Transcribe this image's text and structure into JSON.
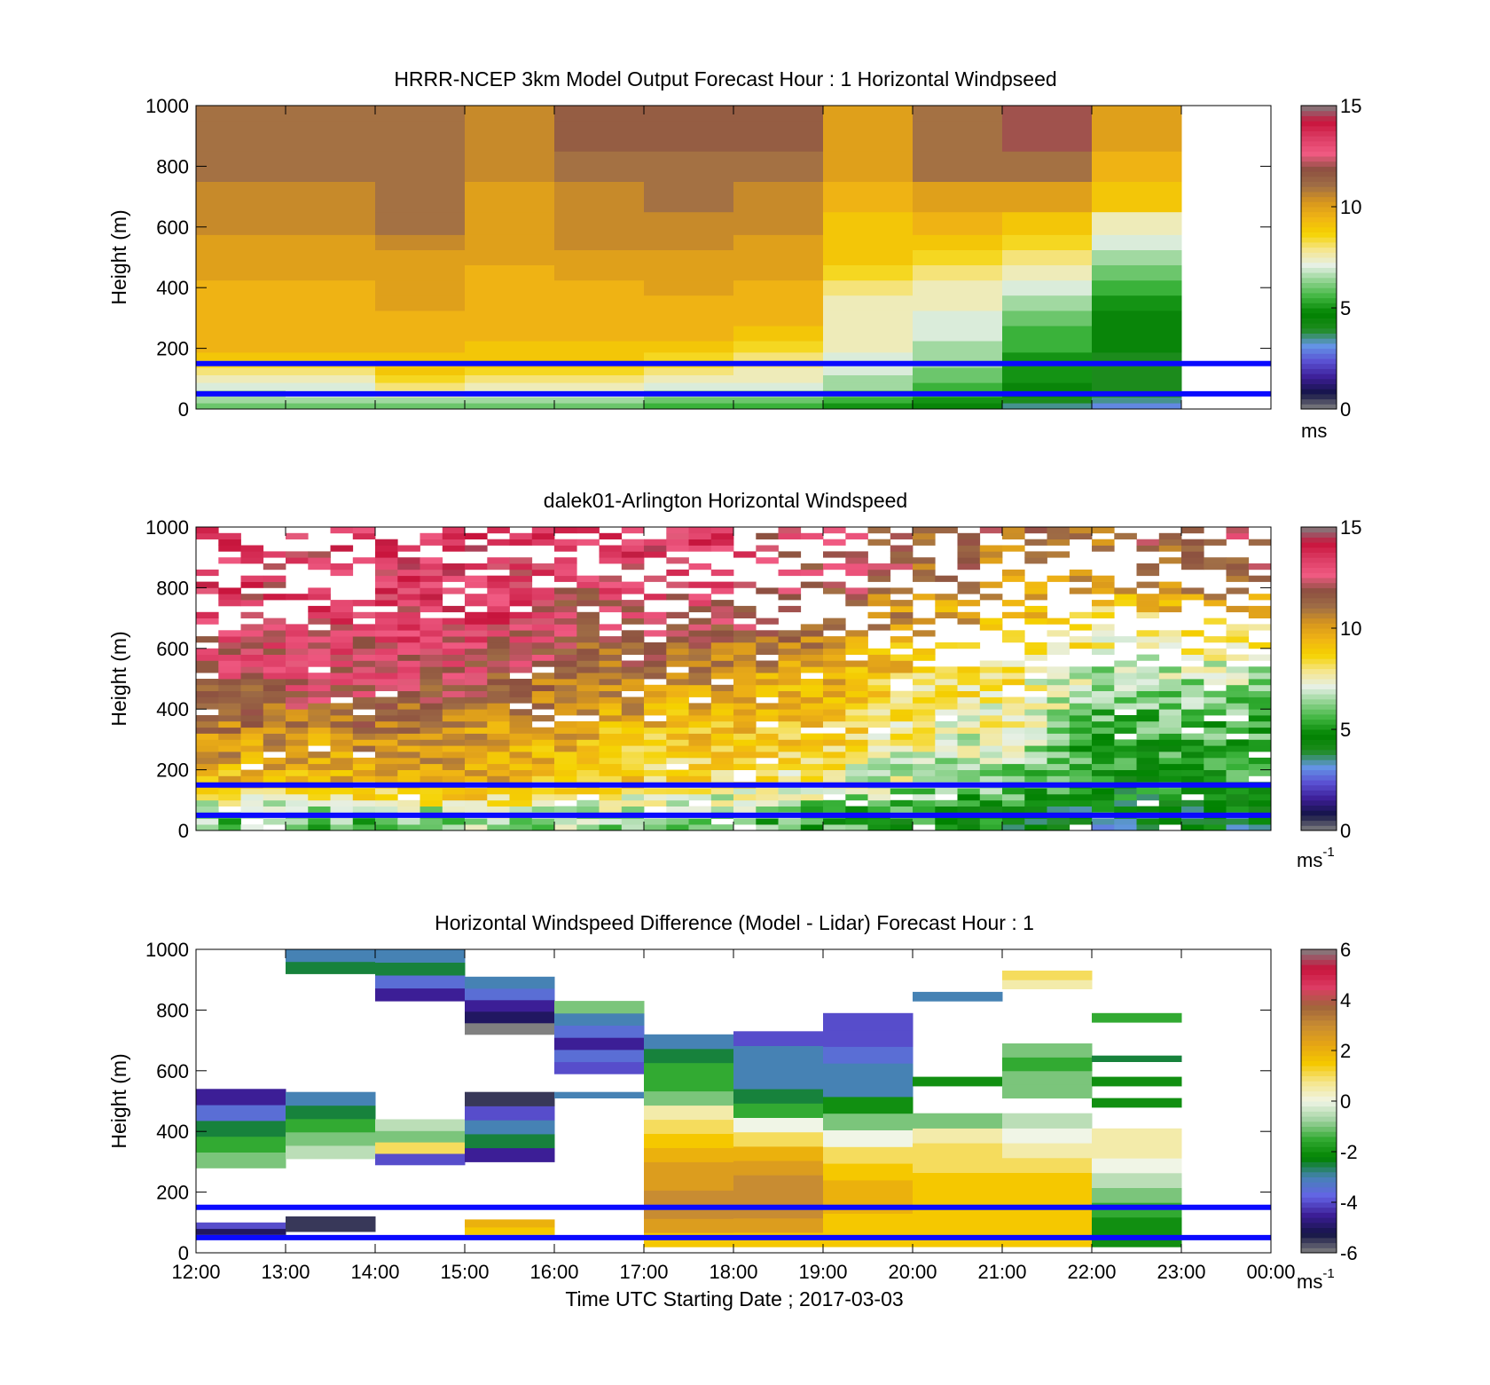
{
  "colors": {
    "windspeed_colormap": [
      "#808080",
      "#141446",
      "#3c1e96",
      "#5a50d2",
      "#6496e6",
      "#1e8c1e",
      "#008200",
      "#3cb43c",
      "#8cd28c",
      "#e6f0e6",
      "#f5e68c",
      "#f5d200",
      "#f0b414",
      "#d7961e",
      "#a06e46",
      "#8c5040",
      "#f05a82",
      "#dc3c64",
      "#c8143c",
      "#808080"
    ],
    "difference_colormap": [
      "#808080",
      "#141446",
      "#3c1e96",
      "#6464e6",
      "#4682b4",
      "#008200",
      "#32aa32",
      "#a0d2a0",
      "#f0f5e6",
      "#f5e68c",
      "#f5c800",
      "#e6a514",
      "#c88c32",
      "#a0643c",
      "#dc3c64",
      "#c8143c",
      "#808080"
    ],
    "reference_line": "#0a0aff",
    "missing": "#ffffff"
  },
  "chart_data": [
    {
      "type": "heatmap",
      "title": "HRRR-NCEP 3km Model Output   Forecast Hour : 1 Horizontal Windpseed",
      "ylabel": "Height (m)",
      "xlabel": "",
      "ylim": [
        0,
        1000
      ],
      "xlim": [
        "12:00",
        "00:00"
      ],
      "y_ticks": [
        "0",
        "200",
        "400",
        "600",
        "800",
        "1000"
      ],
      "colorbar": {
        "range": [
          0,
          15
        ],
        "ticks": [
          "0",
          "5",
          "10",
          "15"
        ],
        "unit": "ms",
        "unit_sup": ""
      },
      "reference_lines_m": [
        50,
        150
      ],
      "x": [
        "12:00",
        "13:00",
        "14:00",
        "15:00",
        "16:00",
        "17:00",
        "18:00",
        "19:00",
        "20:00",
        "21:00",
        "22:00"
      ],
      "heights_m": [
        10,
        30,
        50,
        75,
        100,
        125,
        150,
        175,
        200,
        250,
        300,
        350,
        400,
        450,
        500,
        550,
        600,
        700,
        800,
        900,
        1000
      ],
      "values": [
        [
          6.0,
          6.5,
          6.5,
          7.0,
          7.5,
          8.0,
          8.5,
          9.0,
          9.5,
          9.5,
          9.5,
          9.5,
          9.5,
          10.0,
          10.0,
          10.0,
          10.5,
          10.5,
          11.0,
          11.0,
          11.0
        ],
        [
          6.0,
          6.5,
          7.0,
          7.0,
          7.5,
          8.0,
          8.5,
          9.0,
          9.5,
          9.5,
          9.5,
          9.5,
          9.5,
          10.0,
          10.0,
          10.0,
          10.5,
          10.5,
          11.0,
          11.0,
          11.0
        ],
        [
          6.0,
          6.5,
          7.5,
          8.0,
          8.5,
          9.0,
          9.0,
          9.0,
          9.5,
          9.5,
          9.5,
          10.0,
          10.0,
          10.0,
          10.0,
          10.5,
          11.0,
          11.0,
          11.0,
          11.0,
          11.0
        ],
        [
          6.0,
          6.5,
          7.0,
          7.5,
          8.0,
          8.5,
          9.0,
          9.0,
          9.0,
          9.5,
          9.5,
          9.5,
          9.5,
          9.5,
          10.0,
          10.0,
          10.0,
          10.0,
          10.5,
          10.5,
          10.5
        ],
        [
          6.0,
          6.5,
          7.0,
          7.5,
          8.0,
          8.5,
          9.0,
          9.0,
          9.0,
          9.5,
          9.5,
          9.5,
          9.5,
          10.0,
          10.0,
          10.5,
          10.5,
          10.5,
          11.0,
          11.5,
          11.5
        ],
        [
          5.5,
          6.0,
          6.5,
          7.0,
          7.5,
          8.0,
          8.5,
          8.5,
          9.0,
          9.5,
          9.5,
          9.5,
          10.0,
          10.0,
          10.0,
          10.5,
          10.5,
          11.0,
          11.0,
          11.5,
          11.5
        ],
        [
          5.5,
          6.0,
          6.5,
          7.0,
          7.5,
          7.5,
          8.0,
          8.0,
          8.5,
          9.0,
          9.5,
          9.5,
          9.5,
          10.0,
          10.0,
          10.0,
          10.5,
          10.5,
          11.0,
          11.5,
          11.5
        ],
        [
          5.0,
          5.5,
          6.0,
          6.5,
          6.5,
          7.0,
          7.0,
          7.0,
          7.5,
          7.5,
          7.5,
          7.5,
          8.0,
          8.5,
          9.0,
          9.0,
          9.0,
          9.5,
          10.0,
          10.0,
          10.0
        ],
        [
          4.5,
          5.0,
          5.5,
          5.5,
          6.0,
          6.0,
          6.5,
          6.5,
          6.5,
          7.0,
          7.0,
          7.5,
          7.5,
          8.0,
          8.5,
          9.0,
          9.5,
          10.0,
          11.0,
          11.0,
          11.0
        ],
        [
          3.5,
          4.0,
          4.5,
          4.5,
          5.0,
          5.0,
          5.0,
          5.0,
          5.5,
          5.5,
          6.0,
          6.5,
          7.0,
          7.5,
          8.0,
          8.5,
          9.0,
          10.0,
          11.0,
          12.0,
          12.0
        ],
        [
          3.0,
          3.5,
          4.0,
          4.0,
          4.0,
          4.0,
          4.0,
          4.0,
          4.5,
          4.5,
          4.5,
          5.0,
          5.5,
          6.0,
          6.5,
          7.0,
          7.5,
          9.0,
          9.5,
          10.0,
          10.0
        ]
      ]
    },
    {
      "type": "heatmap",
      "title": "dalek01-Arlington  Horizontal Windspeed",
      "ylabel": "Height (m)",
      "xlabel": "",
      "ylim": [
        0,
        1000
      ],
      "xlim": [
        "12:00",
        "00:00"
      ],
      "y_ticks": [
        "0",
        "200",
        "400",
        "600",
        "800",
        "1000"
      ],
      "colorbar": {
        "range": [
          0,
          15
        ],
        "ticks": [
          "0",
          "5",
          "10",
          "15"
        ],
        "unit": "ms",
        "unit_sup": "-1"
      },
      "reference_lines_m": [
        50,
        150
      ],
      "x": [
        "12:00",
        "12:15",
        "12:30",
        "12:45",
        "13:00",
        "13:15",
        "13:30",
        "13:45",
        "14:00",
        "14:15",
        "14:30",
        "14:45",
        "15:00",
        "15:15",
        "15:30",
        "15:45",
        "16:00",
        "16:15",
        "16:30",
        "16:45",
        "17:00",
        "17:15",
        "17:30",
        "17:45",
        "18:00",
        "18:15",
        "18:30",
        "18:45",
        "19:00",
        "19:15",
        "19:30",
        "19:45",
        "20:00",
        "20:15",
        "20:30",
        "20:45",
        "21:00",
        "21:15",
        "21:30",
        "21:45",
        "22:00",
        "22:15",
        "22:30",
        "22:45",
        "23:00",
        "23:15",
        "23:30",
        "23:45"
      ],
      "profile_summary": {
        "heights_m": [
          50,
          150,
          300,
          500,
          700,
          900
        ],
        "values": [
          [
            6.0,
            9.0,
            10.5,
            12.0,
            13.0,
            13.5
          ],
          [
            6.0,
            9.5,
            10.0,
            12.5,
            13.0,
            13.0
          ],
          [
            6.0,
            9.5,
            10.5,
            12.5,
            13.0,
            13.5
          ],
          [
            6.5,
            10.0,
            10.0,
            12.0,
            13.5,
            13.5
          ],
          [
            6.5,
            9.0,
            9.5,
            11.0,
            12.0,
            13.0
          ],
          [
            6.0,
            8.5,
            9.0,
            10.5,
            12.5,
            13.5
          ],
          [
            6.0,
            8.0,
            9.0,
            10.0,
            12.0,
            13.0
          ],
          [
            5.5,
            7.5,
            8.5,
            9.5,
            11.0,
            12.5
          ],
          [
            5.0,
            6.5,
            7.5,
            8.5,
            10.0,
            11.5
          ],
          [
            4.5,
            6.0,
            7.0,
            8.0,
            9.5,
            11.0
          ],
          [
            4.0,
            5.0,
            5.5,
            6.5,
            8.5,
            10.5
          ],
          [
            4.0,
            5.0,
            5.5,
            6.5,
            9.0,
            12.0
          ]
        ]
      }
    },
    {
      "type": "heatmap",
      "title": "Horizontal Windspeed Difference (Model - Lidar) Forecast Hour : 1",
      "ylabel": "Height (m)",
      "xlabel": "Time UTC  Starting Date ; 2017-03-03",
      "ylim": [
        0,
        1000
      ],
      "xlim": [
        "12:00",
        "00:00"
      ],
      "y_ticks": [
        "0",
        "200",
        "400",
        "600",
        "800",
        "1000"
      ],
      "x_ticks": [
        "12:00",
        "13:00",
        "14:00",
        "15:00",
        "16:00",
        "17:00",
        "18:00",
        "19:00",
        "20:00",
        "21:00",
        "22:00",
        "23:00",
        "00:00"
      ],
      "colorbar": {
        "range": [
          -6,
          6
        ],
        "ticks": [
          "-6",
          "-4",
          "-2",
          "0",
          "2",
          "4",
          "6"
        ],
        "unit": "ms",
        "unit_sup": "-1"
      },
      "reference_lines_m": [
        50,
        150
      ],
      "x": [
        "12:00",
        "13:00",
        "14:00",
        "15:00",
        "16:00",
        "17:00",
        "18:00",
        "19:00",
        "20:00",
        "21:00",
        "22:00"
      ],
      "segments": [
        {
          "x": "12:00",
          "from_m": 280,
          "to_m": 540,
          "values": [
            -1.0,
            -1.5,
            -2.5,
            -3.5,
            -4.5
          ]
        },
        {
          "x": "12:00",
          "from_m": 60,
          "to_m": 100,
          "values": [
            -5.0,
            -4.0
          ]
        },
        {
          "x": "13:00",
          "from_m": 920,
          "to_m": 1000,
          "values": [
            -2.5,
            -3.0
          ]
        },
        {
          "x": "13:00",
          "from_m": 310,
          "to_m": 530,
          "values": [
            -0.5,
            -1.0,
            -1.5,
            -2.5,
            -3.0
          ]
        },
        {
          "x": "13:00",
          "from_m": 70,
          "to_m": 120,
          "values": [
            -5.5,
            -5.5
          ]
        },
        {
          "x": "14:00",
          "from_m": 830,
          "to_m": 1000,
          "values": [
            -4.5,
            -3.5,
            -2.5,
            -3.0
          ]
        },
        {
          "x": "14:00",
          "from_m": 290,
          "to_m": 440,
          "values": [
            -4.0,
            1.0,
            -1.0,
            -0.5
          ]
        },
        {
          "x": "15:00",
          "from_m": 720,
          "to_m": 910,
          "values": [
            -6.0,
            -5.0,
            -4.5,
            -3.5,
            -3.0
          ]
        },
        {
          "x": "15:00",
          "from_m": 300,
          "to_m": 530,
          "values": [
            -4.5,
            -2.5,
            -3.0,
            -4.0,
            -5.5
          ]
        },
        {
          "x": "15:00",
          "from_m": 60,
          "to_m": 110,
          "values": [
            1.5,
            2.0
          ]
        },
        {
          "x": "16:00",
          "from_m": 590,
          "to_m": 830,
          "values": [
            -4.0,
            -3.5,
            -4.5,
            -3.5,
            -3.0,
            -1.0
          ]
        },
        {
          "x": "16:00",
          "from_m": 510,
          "to_m": 530,
          "values": [
            -3.0
          ]
        },
        {
          "x": "17:00",
          "from_m": 20,
          "to_m": 720,
          "values": [
            1.5,
            2.5,
            3.0,
            3.0,
            2.5,
            2.5,
            2.0,
            1.5,
            1.0,
            0.5,
            -1.0,
            -1.5,
            -1.5,
            -2.5,
            -3.0
          ]
        },
        {
          "x": "18:00",
          "from_m": 20,
          "to_m": 730,
          "values": [
            1.5,
            2.5,
            3.0,
            3.0,
            3.0,
            2.5,
            2.0,
            1.0,
            0.0,
            -1.5,
            -2.5,
            -3.0,
            -3.0,
            -3.0,
            -4.0
          ]
        },
        {
          "x": "19:00",
          "from_m": 20,
          "to_m": 790,
          "values": [
            1.5,
            1.5,
            2.0,
            2.0,
            1.5,
            1.0,
            0.0,
            -1.0,
            -2.0,
            -3.0,
            -3.0,
            -3.5,
            -4.0,
            -4.0
          ]
        },
        {
          "x": "20:00",
          "from_m": 20,
          "to_m": 460,
          "values": [
            1.5,
            1.5,
            1.5,
            1.5,
            1.5,
            1.0,
            1.0,
            0.5,
            -1.0
          ]
        },
        {
          "x": "20:00",
          "from_m": 550,
          "to_m": 580,
          "values": [
            -2.0
          ]
        },
        {
          "x": "20:00",
          "from_m": 830,
          "to_m": 860,
          "values": [
            -3.0
          ]
        },
        {
          "x": "21:00",
          "from_m": 20,
          "to_m": 460,
          "values": [
            1.5,
            1.5,
            1.5,
            1.5,
            1.5,
            1.0,
            0.5,
            0.0,
            -0.5
          ]
        },
        {
          "x": "21:00",
          "from_m": 510,
          "to_m": 690,
          "values": [
            -1.0,
            -1.0,
            -1.5,
            -1.0
          ]
        },
        {
          "x": "21:00",
          "from_m": 870,
          "to_m": 930,
          "values": [
            0.5,
            1.0
          ]
        },
        {
          "x": "22:00",
          "from_m": 20,
          "to_m": 410,
          "values": [
            -2.0,
            -2.0,
            -1.5,
            -1.0,
            -0.5,
            0.0,
            0.5,
            0.5
          ]
        },
        {
          "x": "22:00",
          "from_m": 480,
          "to_m": 510,
          "values": [
            -2.0
          ]
        },
        {
          "x": "22:00",
          "from_m": 550,
          "to_m": 580,
          "values": [
            -2.0
          ]
        },
        {
          "x": "22:00",
          "from_m": 630,
          "to_m": 650,
          "values": [
            -2.5
          ]
        },
        {
          "x": "22:00",
          "from_m": 760,
          "to_m": 790,
          "values": [
            -1.5
          ]
        }
      ]
    }
  ]
}
